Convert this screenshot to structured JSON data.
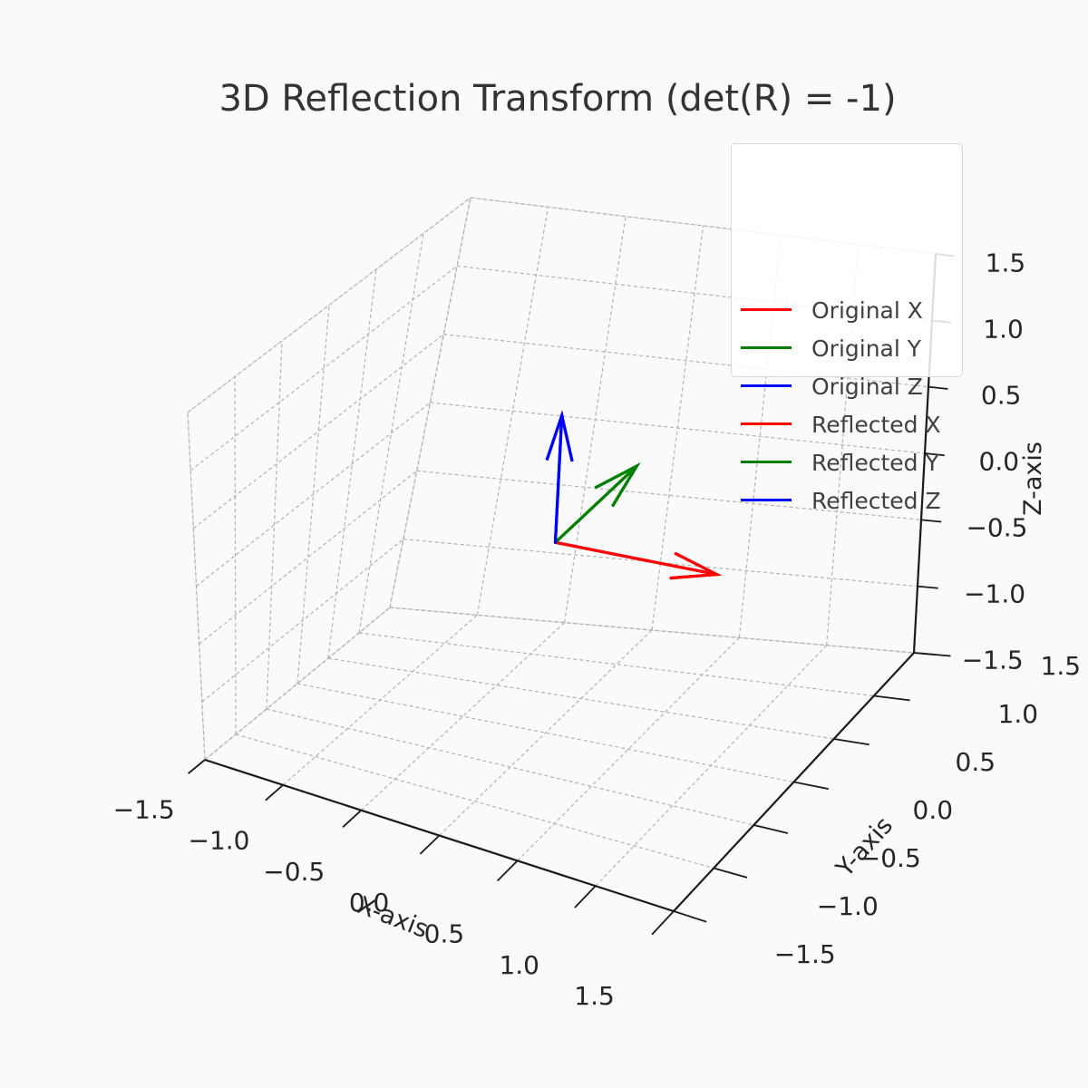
{
  "chart_data": {
    "type": "3d-quiver",
    "title": "3D Reflection Transform (det(R) = -1)",
    "xlabel": "X-axis",
    "ylabel": "Y-axis",
    "zlabel": "Z-axis",
    "xlim": [
      -1.5,
      1.5
    ],
    "ylim": [
      -1.5,
      1.5
    ],
    "zlim": [
      -1.5,
      1.5
    ],
    "ticks": [
      -1.5,
      -1.0,
      -0.5,
      0.0,
      0.5,
      1.0,
      1.5
    ],
    "tick_labels": [
      "−1.5",
      "−1.0",
      "−0.5",
      "0.0",
      "0.5",
      "1.0",
      "1.5"
    ],
    "grid": true,
    "legend_position": "top-right",
    "series": [
      {
        "name": "Original X",
        "color": "#ff0000",
        "origin": [
          0,
          0,
          0
        ],
        "vector": [
          1,
          0,
          0
        ]
      },
      {
        "name": "Original Y",
        "color": "#008000",
        "origin": [
          0,
          0,
          0
        ],
        "vector": [
          0,
          1,
          0
        ]
      },
      {
        "name": "Original Z",
        "color": "#0000ff",
        "origin": [
          0,
          0,
          0
        ],
        "vector": [
          0,
          0,
          1
        ]
      },
      {
        "name": "Reflected X",
        "color": "#ff0000",
        "origin": [
          0,
          0,
          0
        ],
        "vector": [
          1,
          0,
          0
        ]
      },
      {
        "name": "Reflected Y",
        "color": "#008000",
        "origin": [
          0,
          0,
          0
        ],
        "vector": [
          0,
          1,
          0
        ]
      },
      {
        "name": "Reflected Z",
        "color": "#0000ff",
        "origin": [
          0,
          0,
          0
        ],
        "vector": [
          0,
          0,
          1
        ]
      }
    ]
  }
}
